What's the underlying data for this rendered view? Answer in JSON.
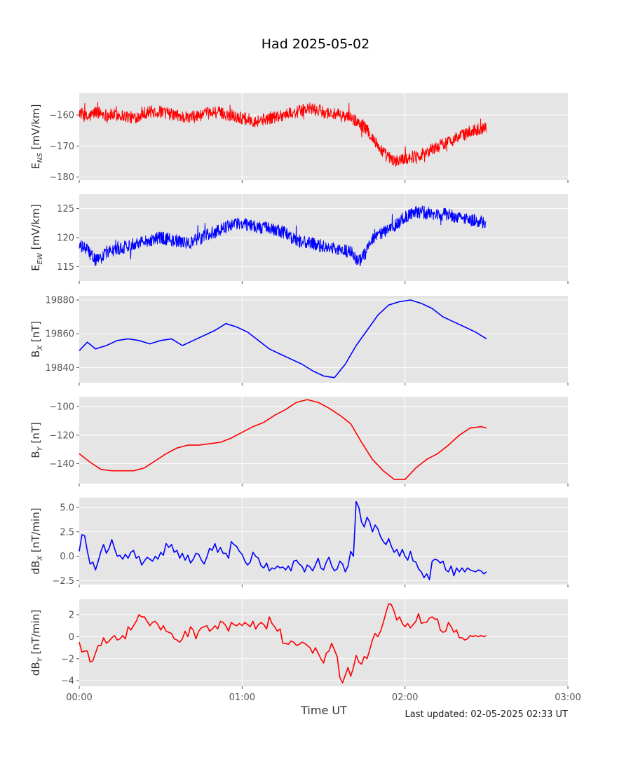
{
  "figure": {
    "title": "Had 2025-05-02",
    "xlabel": "Time UT",
    "updated": "Last updated: 02-05-2025 02:33 UT"
  },
  "chart_data": [
    {
      "type": "line",
      "ylabel_main": "E",
      "ylabel_sub": "NS",
      "ylabel_unit": " [mV/km]",
      "color": "#ff0000",
      "xlim": [
        "00:00",
        "03:00"
      ],
      "ylim": [
        -181,
        -153
      ],
      "xticks": [
        "00:00",
        "01:00",
        "02:00",
        "03:00"
      ],
      "yticks": [
        -180,
        -170,
        -160
      ],
      "noise": 2.0,
      "series": [
        {
          "x_min": [
            0,
            3,
            6,
            10,
            15,
            20,
            25,
            30,
            35,
            40,
            45,
            50,
            55,
            60,
            65,
            70,
            75,
            80,
            85,
            90,
            95,
            100,
            104,
            107,
            110,
            113,
            116,
            120,
            125,
            130,
            135,
            140,
            145,
            150
          ],
          "values": [
            -159,
            -161,
            -159,
            -160,
            -160,
            -161,
            -159,
            -159,
            -160,
            -161,
            -160,
            -159,
            -160,
            -161,
            -162,
            -161,
            -160,
            -159,
            -158,
            -159,
            -160,
            -161,
            -163,
            -166,
            -170,
            -173,
            -175,
            -174,
            -173,
            -171,
            -169,
            -167,
            -165,
            -164
          ]
        }
      ]
    },
    {
      "type": "line",
      "ylabel_main": "E",
      "ylabel_sub": "EW",
      "ylabel_unit": " [mV/km]",
      "color": "#0000ff",
      "xlim": [
        "00:00",
        "03:00"
      ],
      "ylim": [
        112.5,
        127.5
      ],
      "xticks": [
        "00:00",
        "01:00",
        "02:00",
        "03:00"
      ],
      "yticks": [
        115,
        120,
        125
      ],
      "noise": 1.1,
      "series": [
        {
          "x_min": [
            0,
            3,
            5,
            7,
            10,
            15,
            20,
            25,
            30,
            35,
            40,
            45,
            50,
            55,
            60,
            65,
            70,
            75,
            80,
            85,
            90,
            95,
            100,
            103,
            105,
            108,
            112,
            116,
            120,
            125,
            130,
            135,
            140,
            145,
            150
          ],
          "values": [
            118.5,
            118,
            116.5,
            116,
            117.5,
            118,
            119,
            119.5,
            120,
            119.5,
            119,
            120,
            121,
            122,
            122.5,
            122,
            121.5,
            121,
            119.5,
            119,
            118.5,
            118,
            117.5,
            116,
            117,
            119.5,
            121,
            122,
            123.5,
            124.5,
            124,
            124,
            123.5,
            123,
            122.5
          ]
        }
      ]
    },
    {
      "type": "line",
      "ylabel_main": "B",
      "ylabel_sub": "X",
      "ylabel_unit": " [nT]",
      "color": "#0000ff",
      "xlim": [
        "00:00",
        "03:00"
      ],
      "ylim": [
        19831,
        19882.5
      ],
      "xticks": [
        "00:00",
        "01:00",
        "02:00",
        "03:00"
      ],
      "yticks": [
        19840,
        19860,
        19880
      ],
      "noise": 0,
      "series": [
        {
          "x_min": [
            0,
            3,
            6,
            10,
            14,
            18,
            22,
            26,
            30,
            34,
            38,
            42,
            46,
            50,
            54,
            58,
            62,
            66,
            70,
            74,
            78,
            82,
            86,
            90,
            94,
            98,
            102,
            106,
            110,
            114,
            118,
            122,
            126,
            130,
            134,
            138,
            142,
            146,
            150
          ],
          "values": [
            19850,
            19855,
            19851,
            19853,
            19856,
            19857,
            19856,
            19854,
            19856,
            19857,
            19853,
            19856,
            19859,
            19862,
            19866,
            19864,
            19861,
            19856,
            19851,
            19848,
            19845,
            19842,
            19838,
            19835,
            19834,
            19842,
            19853,
            19862,
            19871,
            19877,
            19879,
            19880,
            19878,
            19875,
            19870,
            19867,
            19864,
            19861,
            19857
          ]
        }
      ]
    },
    {
      "type": "line",
      "ylabel_main": "B",
      "ylabel_sub": "Y",
      "ylabel_unit": " [nT]",
      "color": "#ff0000",
      "xlim": [
        "00:00",
        "03:00"
      ],
      "ylim": [
        -154,
        -93
      ],
      "xticks": [
        "00:00",
        "01:00",
        "02:00",
        "03:00"
      ],
      "yticks": [
        -140,
        -120,
        -100
      ],
      "noise": 0,
      "series": [
        {
          "x_min": [
            0,
            4,
            8,
            12,
            16,
            20,
            24,
            28,
            32,
            36,
            40,
            44,
            48,
            52,
            56,
            60,
            64,
            68,
            72,
            76,
            80,
            84,
            88,
            92,
            96,
            100,
            104,
            108,
            112,
            116,
            120,
            124,
            128,
            132,
            136,
            140,
            144,
            148,
            150
          ],
          "values": [
            -133,
            -139,
            -144,
            -145,
            -145,
            -145,
            -143,
            -138,
            -133,
            -129,
            -127,
            -127,
            -126,
            -125,
            -122,
            -118,
            -114,
            -111,
            -106,
            -102,
            -97,
            -95,
            -97,
            -101,
            -106,
            -112,
            -125,
            -137,
            -145,
            -151,
            -151,
            -143,
            -137,
            -133,
            -127,
            -120,
            -115,
            -114,
            -115
          ]
        }
      ]
    },
    {
      "type": "line",
      "ylabel_main": "dB",
      "ylabel_sub": "X",
      "ylabel_unit": " [nT/min]",
      "color": "#0000ff",
      "xlim": [
        "00:00",
        "03:00"
      ],
      "ylim": [
        -2.9,
        6.0
      ],
      "xticks": [
        "00:00",
        "01:00",
        "02:00",
        "03:00"
      ],
      "yticks": [
        -2.5,
        0.0,
        2.5,
        5.0
      ],
      "ytick_labels": [
        "−2.5",
        "0.0",
        "2.5",
        "5.0"
      ],
      "noise": 0,
      "series": [
        {
          "x_min": [
            0,
            1,
            2,
            3,
            4,
            5,
            6,
            7,
            8,
            9,
            10,
            11,
            12,
            13,
            14,
            15,
            16,
            17,
            18,
            19,
            20,
            21,
            22,
            23,
            24,
            25,
            26,
            27,
            28,
            29,
            30,
            31,
            32,
            33,
            34,
            35,
            36,
            37,
            38,
            39,
            40,
            41,
            42,
            43,
            44,
            45,
            46,
            47,
            48,
            49,
            50,
            51,
            52,
            53,
            54,
            55,
            56,
            57,
            58,
            59,
            60,
            61,
            62,
            63,
            64,
            65,
            66,
            67,
            68,
            69,
            70,
            71,
            72,
            73,
            74,
            75,
            76,
            77,
            78,
            79,
            80,
            81,
            82,
            83,
            84,
            85,
            86,
            87,
            88,
            89,
            90,
            91,
            92,
            93,
            94,
            95,
            96,
            97,
            98,
            99,
            100,
            101,
            102,
            103,
            104,
            105,
            106,
            107,
            108,
            109,
            110,
            111,
            112,
            113,
            114,
            115,
            116,
            117,
            118,
            119,
            120,
            121,
            122,
            123,
            124,
            125,
            126,
            127,
            128,
            129,
            130,
            131,
            132,
            133,
            134,
            135,
            136,
            137,
            138,
            139,
            140,
            141,
            142,
            143,
            144,
            145,
            146,
            147,
            148,
            149,
            150
          ],
          "values": [
            0.5,
            2.2,
            2.1,
            0.5,
            -0.8,
            -0.6,
            -1.4,
            -0.5,
            0.5,
            1.2,
            0.3,
            0.8,
            1.7,
            0.8,
            0.0,
            0.1,
            -0.3,
            0.2,
            -0.2,
            0.4,
            0.6,
            -0.2,
            0.0,
            -0.9,
            -0.5,
            -0.1,
            -0.3,
            -0.5,
            0.0,
            -0.3,
            0.4,
            0.1,
            1.3,
            0.9,
            1.2,
            0.4,
            0.6,
            -0.2,
            0.3,
            -0.4,
            0.1,
            -0.7,
            -0.3,
            0.3,
            0.2,
            -0.4,
            -0.8,
            -0.1,
            0.8,
            0.6,
            1.3,
            0.4,
            0.9,
            0.3,
            0.3,
            -0.2,
            1.5,
            1.2,
            1.0,
            0.5,
            0.2,
            -0.5,
            -0.9,
            -0.6,
            0.4,
            0.0,
            -0.2,
            -1.0,
            -1.2,
            -0.7,
            -1.5,
            -1.2,
            -1.3,
            -1.0,
            -1.2,
            -1.1,
            -1.4,
            -1.0,
            -1.5,
            -0.5,
            -0.4,
            -0.8,
            -1.0,
            -1.6,
            -0.9,
            -1.1,
            -1.5,
            -0.9,
            -0.2,
            -1.2,
            -1.4,
            -0.6,
            -0.1,
            -1.0,
            -1.5,
            -1.3,
            -0.5,
            -0.8,
            -1.6,
            -1.0,
            0.5,
            0.0,
            5.6,
            5.0,
            3.5,
            3.0,
            4.0,
            3.5,
            2.5,
            3.2,
            2.8,
            2.0,
            1.5,
            1.2,
            1.8,
            1.0,
            0.4,
            0.7,
            0.0,
            0.7,
            0.0,
            -0.4,
            0.5,
            -0.5,
            -0.6,
            -1.3,
            -1.6,
            -2.2,
            -1.8,
            -2.4,
            -0.5,
            -0.3,
            -0.4,
            -0.7,
            -0.5,
            -1.4,
            -1.6,
            -1.0,
            -2.0,
            -1.2,
            -1.6,
            -1.2,
            -1.6,
            -1.2,
            -1.4,
            -1.5,
            -1.6,
            -1.4,
            -1.5,
            -1.8,
            -1.6,
            -1.2,
            -1.3
          ]
        }
      ]
    },
    {
      "type": "line",
      "ylabel_main": "dB",
      "ylabel_sub": "Y",
      "ylabel_unit": " [nT/min]",
      "color": "#ff0000",
      "xlim": [
        "00:00",
        "03:00"
      ],
      "ylim": [
        -4.5,
        3.4
      ],
      "xticks": [
        "00:00",
        "01:00",
        "02:00",
        "03:00"
      ],
      "xtick_labels": [
        "00:00",
        "01:00",
        "02:00",
        "03:00"
      ],
      "yticks": [
        -4,
        -2,
        0,
        2
      ],
      "ytick_labels": [
        "−4",
        "−2",
        "0",
        "2"
      ],
      "noise": 0,
      "series": [
        {
          "x_min": [
            0,
            1,
            2,
            3,
            4,
            5,
            6,
            7,
            8,
            9,
            10,
            11,
            12,
            13,
            14,
            15,
            16,
            17,
            18,
            19,
            20,
            21,
            22,
            23,
            24,
            25,
            26,
            27,
            28,
            29,
            30,
            31,
            32,
            33,
            34,
            35,
            36,
            37,
            38,
            39,
            40,
            41,
            42,
            43,
            44,
            45,
            46,
            47,
            48,
            49,
            50,
            51,
            52,
            53,
            54,
            55,
            56,
            57,
            58,
            59,
            60,
            61,
            62,
            63,
            64,
            65,
            66,
            67,
            68,
            69,
            70,
            71,
            72,
            73,
            74,
            75,
            76,
            77,
            78,
            79,
            80,
            81,
            82,
            83,
            84,
            85,
            86,
            87,
            88,
            89,
            90,
            91,
            92,
            93,
            94,
            95,
            96,
            97,
            98,
            99,
            100,
            101,
            102,
            103,
            104,
            105,
            106,
            107,
            108,
            109,
            110,
            111,
            112,
            113,
            114,
            115,
            116,
            117,
            118,
            119,
            120,
            121,
            122,
            123,
            124,
            125,
            126,
            127,
            128,
            129,
            130,
            131,
            132,
            133,
            134,
            135,
            136,
            137,
            138,
            139,
            140,
            141,
            142,
            143,
            144,
            145,
            146,
            147,
            148,
            149,
            150
          ],
          "values": [
            -0.5,
            -1.4,
            -1.3,
            -1.3,
            -2.3,
            -2.2,
            -1.5,
            -0.8,
            -0.8,
            -0.1,
            -0.6,
            -0.4,
            -0.1,
            0.1,
            -0.3,
            -0.2,
            0.1,
            -0.2,
            0.9,
            0.6,
            1.0,
            1.4,
            2.0,
            1.8,
            1.8,
            1.4,
            1.0,
            1.3,
            1.4,
            1.1,
            0.6,
            1.0,
            0.5,
            0.4,
            0.3,
            -0.2,
            -0.3,
            -0.5,
            -0.2,
            0.5,
            0.0,
            0.9,
            0.6,
            -0.2,
            0.5,
            0.8,
            0.9,
            1.0,
            0.5,
            0.7,
            1.0,
            0.7,
            1.4,
            1.3,
            1.0,
            0.5,
            1.3,
            1.1,
            1.0,
            1.2,
            1.0,
            1.3,
            1.1,
            0.9,
            1.4,
            0.7,
            1.1,
            1.3,
            1.1,
            0.7,
            1.8,
            1.2,
            0.9,
            0.5,
            0.7,
            -0.6,
            -0.6,
            -0.7,
            -0.4,
            -0.5,
            -0.8,
            -0.7,
            -0.5,
            -0.6,
            -0.8,
            -1.0,
            -1.5,
            -1.0,
            -1.5,
            -2.0,
            -2.4,
            -1.5,
            -1.3,
            -0.6,
            -1.2,
            -1.8,
            -3.7,
            -4.2,
            -3.5,
            -2.8,
            -3.6,
            -2.8,
            -1.7,
            -2.3,
            -2.5,
            -1.8,
            -2.0,
            -1.2,
            -0.3,
            0.3,
            0.0,
            0.5,
            1.3,
            2.2,
            3.0,
            2.9,
            2.3,
            1.5,
            1.8,
            1.2,
            0.9,
            1.2,
            0.8,
            1.1,
            1.4,
            2.1,
            1.2,
            1.3,
            1.3,
            1.7,
            1.8,
            1.6,
            1.6,
            0.6,
            0.4,
            0.5,
            1.3,
            0.9,
            0.4,
            0.6,
            -0.1,
            -0.1,
            -0.3,
            -0.2,
            0.1,
            0.0,
            0.1,
            0.0,
            0.1,
            0.0,
            0.1
          ]
        }
      ]
    }
  ]
}
